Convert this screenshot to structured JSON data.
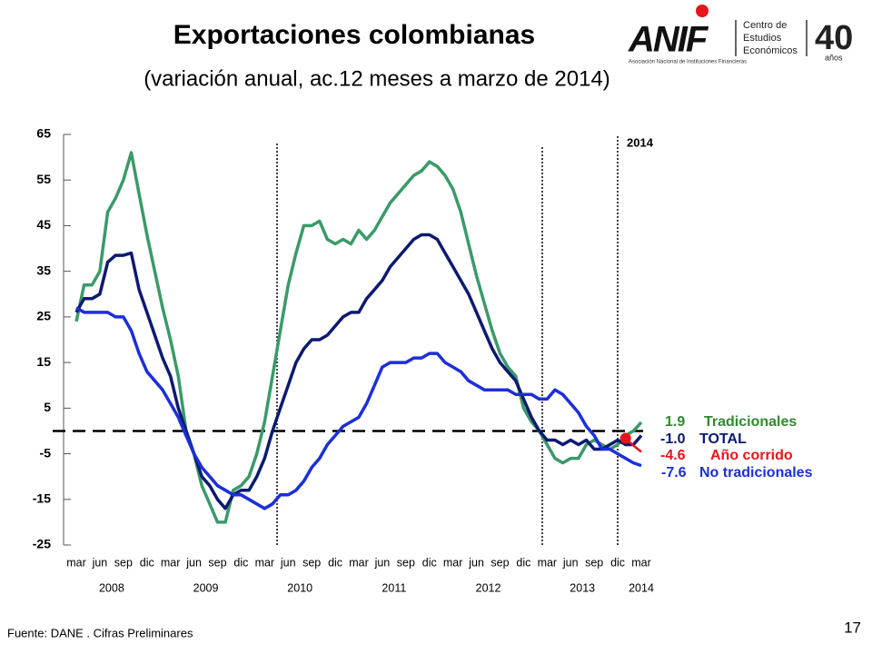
{
  "logo": {
    "brand": "ANIF",
    "tagline": "Asociación Nacional de Instituciones Financieras",
    "center": [
      "Centro de",
      "Estudios",
      "Económicos"
    ],
    "anniversary": "40",
    "anniversary_sub": "años"
  },
  "chart_data": {
    "type": "line",
    "title": "Exportaciones colombianas",
    "subtitle": "(variación anual, ac.12 meses a marzo de 2014)",
    "annotation": "2014",
    "source": "Fuente: DANE . Cifras Preliminares",
    "page_number": "17",
    "categories": [
      "mar",
      null,
      null,
      "jun",
      null,
      null,
      "sep",
      null,
      null,
      "dic",
      null,
      null,
      "mar",
      null,
      null,
      "jun",
      null,
      null,
      "sep",
      null,
      null,
      "dic",
      null,
      null,
      "mar",
      null,
      null,
      "jun",
      null,
      null,
      "sep",
      null,
      null,
      "dic",
      null,
      null,
      "mar",
      null,
      null,
      "jun",
      null,
      null,
      "sep",
      null,
      null,
      "dic",
      null,
      null,
      "mar",
      null,
      null,
      "jun",
      null,
      null,
      "sep",
      null,
      null,
      "dic",
      null,
      null,
      "mar",
      null,
      null,
      "jun",
      null,
      null,
      "sep",
      null,
      null,
      "dic",
      null,
      null,
      "mar"
    ],
    "years": [
      "2008",
      "2009",
      "2010",
      "2011",
      "2012",
      "2013",
      "2014"
    ],
    "ylim": [
      -25,
      65
    ],
    "yticks": [
      65,
      55,
      45,
      35,
      25,
      15,
      5,
      -5,
      -15,
      -25
    ],
    "zero_line": true,
    "series": [
      {
        "name": "Tradicionales",
        "color": "#3a9a68",
        "label_color": "#2e8b2e",
        "values": [
          24,
          32,
          32,
          35,
          48,
          51,
          55,
          61,
          52,
          43,
          35,
          27,
          20,
          12,
          0,
          -5,
          -12,
          -16,
          -20,
          -20,
          -13,
          -12,
          -10,
          -5,
          2,
          12,
          22,
          32,
          39,
          45,
          45,
          46,
          42,
          41,
          42,
          41,
          44,
          42,
          44,
          47,
          50,
          52,
          54,
          56,
          57,
          59,
          58,
          56,
          53,
          48,
          41,
          34,
          28,
          22,
          17,
          14,
          12,
          5,
          2,
          0,
          -3,
          -6,
          -7,
          -6,
          -6,
          -3,
          -2,
          -3,
          -4,
          -3,
          -1,
          0,
          1.9
        ]
      },
      {
        "name": "TOTAL",
        "color": "#0c1a70",
        "label_color": "#0c1a70",
        "values": [
          26,
          29,
          29,
          30,
          37,
          38.5,
          38.5,
          39,
          31,
          26,
          21,
          16,
          12,
          5,
          0,
          -5,
          -10,
          -12,
          -15,
          -17,
          -14,
          -13,
          -13,
          -10,
          -6,
          0,
          5,
          10,
          15,
          18,
          20,
          20,
          21,
          23,
          25,
          26,
          26,
          29,
          31,
          33,
          36,
          38,
          40,
          42,
          43,
          43,
          42,
          39,
          36,
          33,
          30,
          26,
          22,
          18,
          15,
          13,
          11,
          7,
          3,
          0,
          -2,
          -2,
          -3,
          -2,
          -3,
          -2,
          -4,
          -4,
          -3,
          -2,
          -3,
          -3,
          -1
        ],
        "value_labels": [
          null,
          null,
          null,
          null,
          null,
          null,
          null,
          null,
          null,
          null,
          null,
          null,
          null,
          null,
          null,
          null,
          null,
          null,
          null,
          null,
          null,
          null,
          null,
          null,
          null,
          null,
          null,
          null,
          null,
          null,
          null,
          null,
          null,
          null,
          null,
          null,
          null,
          null,
          null,
          null,
          null,
          null,
          null,
          null,
          null,
          null,
          null,
          null,
          null,
          null,
          null,
          null,
          null,
          null,
          null,
          null,
          null,
          null,
          null,
          null,
          null,
          null,
          null,
          null,
          null,
          null,
          null,
          null,
          null,
          null,
          null,
          null,
          "-1.0"
        ]
      },
      {
        "name": "Año corrido",
        "color": "#e8141b",
        "label_color": "#e8141b",
        "marker": true,
        "values": [
          null,
          null,
          null,
          null,
          null,
          null,
          null,
          null,
          null,
          null,
          null,
          null,
          null,
          null,
          null,
          null,
          null,
          null,
          null,
          null,
          null,
          null,
          null,
          null,
          null,
          null,
          null,
          null,
          null,
          null,
          null,
          null,
          null,
          null,
          null,
          null,
          null,
          null,
          null,
          null,
          null,
          null,
          null,
          null,
          null,
          null,
          null,
          null,
          null,
          null,
          null,
          null,
          null,
          null,
          null,
          null,
          null,
          null,
          null,
          null,
          null,
          null,
          null,
          null,
          null,
          null,
          null,
          null,
          null,
          null,
          -1.6,
          -3.2,
          -4.6
        ]
      },
      {
        "name": "No tradicionales",
        "color": "#1c2fd8",
        "label_color": "#1c2fd8",
        "values": [
          27,
          26,
          26,
          26,
          26,
          25,
          25,
          22,
          17,
          13,
          11,
          9,
          6,
          3,
          -1,
          -5,
          -8,
          -10,
          -12,
          -13,
          -14,
          -14,
          -15,
          -16,
          -17,
          -16,
          -14,
          -14,
          -13,
          -11,
          -8,
          -6,
          -3,
          -1,
          1,
          2,
          3,
          6,
          10,
          14,
          15,
          15,
          15,
          16,
          16,
          17,
          17,
          15,
          14,
          13,
          11,
          10,
          9,
          9,
          9,
          9,
          8,
          8,
          8,
          7,
          7,
          9,
          8,
          6,
          4,
          1,
          -1,
          -4,
          -4,
          -5,
          -6,
          -7,
          -7.6
        ]
      }
    ]
  }
}
